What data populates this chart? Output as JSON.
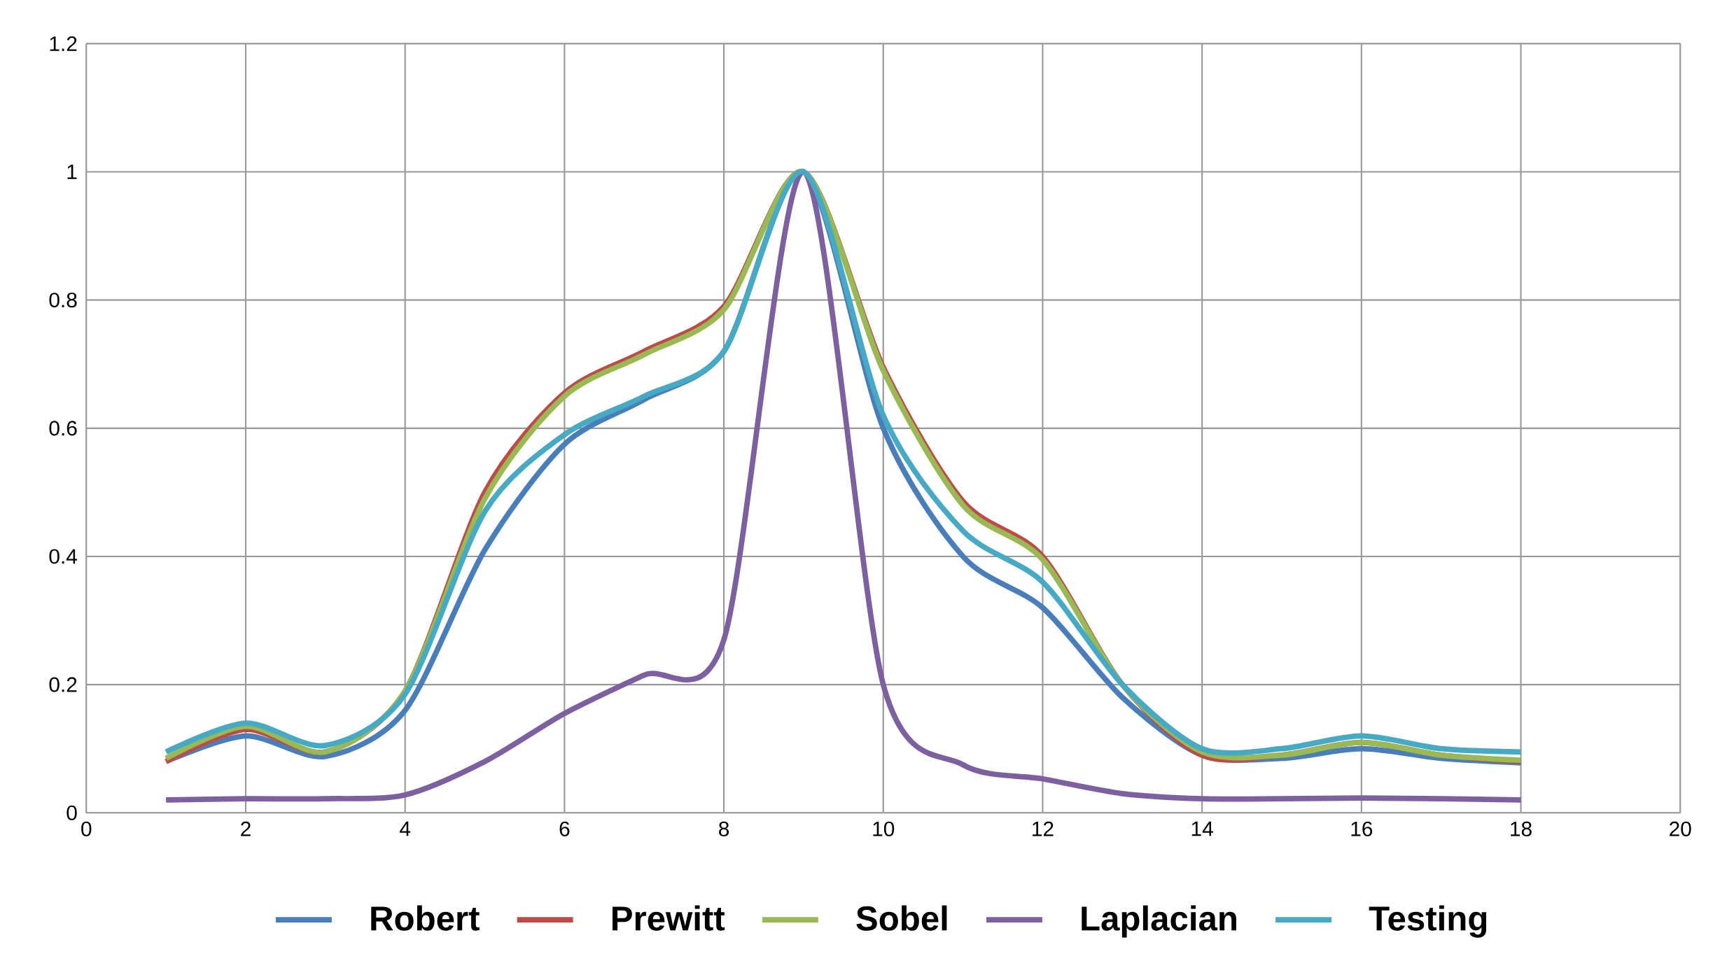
{
  "chart_data": {
    "type": "line",
    "x": [
      1,
      2,
      3,
      4,
      5,
      6,
      7,
      8,
      9,
      10,
      11,
      12,
      13,
      14,
      15,
      16,
      17,
      18
    ],
    "series": [
      {
        "name": "Robert",
        "color": "#4a7ebb",
        "values": [
          0.08,
          0.12,
          0.088,
          0.16,
          0.41,
          0.575,
          0.645,
          0.72,
          1.0,
          0.6,
          0.4,
          0.32,
          0.18,
          0.09,
          0.085,
          0.1,
          0.085,
          0.078
        ]
      },
      {
        "name": "Prewitt",
        "color": "#be4b48",
        "values": [
          0.08,
          0.13,
          0.095,
          0.19,
          0.5,
          0.655,
          0.72,
          0.79,
          1.0,
          0.695,
          0.486,
          0.4,
          0.2,
          0.09,
          0.09,
          0.11,
          0.09,
          0.08
        ]
      },
      {
        "name": "Sobel",
        "color": "#98b954",
        "values": [
          0.085,
          0.135,
          0.095,
          0.19,
          0.49,
          0.65,
          0.715,
          0.785,
          1.0,
          0.69,
          0.48,
          0.395,
          0.2,
          0.095,
          0.09,
          0.11,
          0.09,
          0.082
        ]
      },
      {
        "name": "Laplacian",
        "color": "#7d60a0",
        "values": [
          0.02,
          0.022,
          0.022,
          0.028,
          0.08,
          0.155,
          0.215,
          0.27,
          1.0,
          0.2,
          0.075,
          0.053,
          0.03,
          0.022,
          0.022,
          0.023,
          0.022,
          0.02
        ]
      },
      {
        "name": "Testing",
        "color": "#46aac5",
        "values": [
          0.095,
          0.14,
          0.105,
          0.185,
          0.47,
          0.59,
          0.65,
          0.72,
          1.0,
          0.62,
          0.44,
          0.36,
          0.2,
          0.1,
          0.1,
          0.12,
          0.1,
          0.095
        ]
      }
    ],
    "xlim": [
      0,
      20
    ],
    "xticks": [
      0,
      2,
      4,
      6,
      8,
      10,
      12,
      14,
      16,
      18,
      20
    ],
    "ylim": [
      0,
      1.2
    ],
    "yticks": [
      0,
      0.2,
      0.4,
      0.6,
      0.8,
      1,
      1.2
    ],
    "grid": true,
    "legend": "bottom"
  }
}
